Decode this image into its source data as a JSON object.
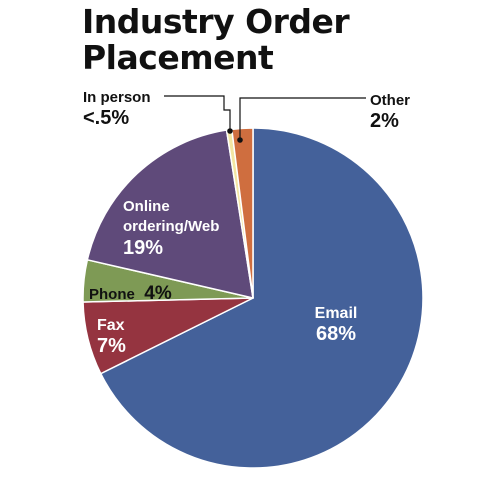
{
  "chart_data": {
    "type": "pie",
    "title_lines": [
      "Industry Order",
      "Placement"
    ],
    "slices": [
      {
        "label": "Email",
        "label_lines": [
          "Email"
        ],
        "value_label": "68%",
        "value": 68,
        "color": "#44619a"
      },
      {
        "label": "Fax",
        "label_lines": [
          "Fax"
        ],
        "value_label": "7%",
        "value": 7,
        "color": "#953440"
      },
      {
        "label": "Phone",
        "label_lines": [
          "Phone"
        ],
        "value_label": "4%",
        "value": 4,
        "color": "#7e9a55"
      },
      {
        "label": "Online ordering/Web",
        "label_lines": [
          "Online",
          "ordering/Web"
        ],
        "value_label": "19%",
        "value": 19,
        "color": "#5f4a7a"
      },
      {
        "label": "In person",
        "label_lines": [
          "In person"
        ],
        "value_label": "<.5%",
        "value": 0.5,
        "color": "#f3e6a2"
      },
      {
        "label": "Other",
        "label_lines": [
          "Other"
        ],
        "value_label": "2%",
        "value": 2,
        "color": "#cf6e3f"
      }
    ]
  }
}
